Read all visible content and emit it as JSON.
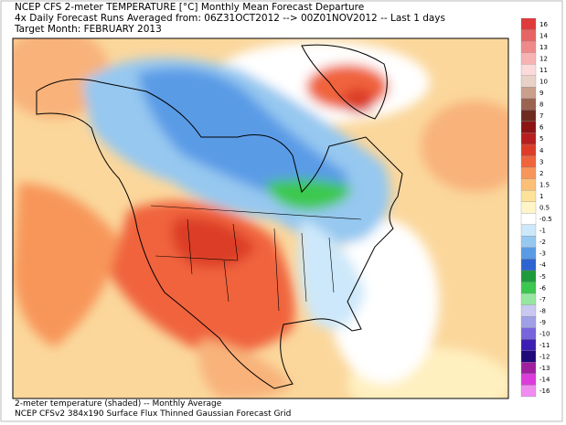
{
  "header": {
    "lines": [
      "NCEP CFS 2-meter TEMPERATURE [°C] Monthly Mean Forecast Departure",
      "4x Daily Forecast Runs Averaged from: 06Z31OCT2012 --> 00Z01NOV2012 -- Last 1 days",
      "Target Month: FEBRUARY 2013"
    ]
  },
  "footer": {
    "lines": [
      "2-meter temperature (shaded) -- Monthly Average",
      "NCEP CFSv2 384x190 Surface Flux Thinned Gaussian Forecast Grid"
    ]
  },
  "colorbar": {
    "levels": [
      16,
      14,
      13,
      12,
      11,
      10,
      9,
      8,
      7,
      6,
      5,
      4,
      3,
      2,
      1.5,
      1,
      0.5,
      -0.5,
      -1,
      -2,
      -3,
      -4,
      -5,
      -6,
      -7,
      -8,
      -9,
      -10,
      -11,
      -12,
      -13,
      -14,
      -16
    ],
    "colors": [
      "#e03b3b",
      "#e86464",
      "#f08a8a",
      "#f7b3b3",
      "#fcdada",
      "#e8d2c8",
      "#c9a08c",
      "#9b6450",
      "#6e2c20",
      "#8c1414",
      "#b81e1e",
      "#dc3c28",
      "#f0643c",
      "#f8965a",
      "#fbbf78",
      "#fde29a",
      "#fff5c8",
      "#ffffff",
      "#cde8fa",
      "#96c8f0",
      "#5a9be6",
      "#2d64d2",
      "#1e9b3c",
      "#3cc850",
      "#96e6a0",
      "#c8c8f0",
      "#a0a0e6",
      "#7864dc",
      "#3c1eb4",
      "#1e0a78",
      "#a01ea0",
      "#dc3cdc",
      "#f08cf0"
    ]
  }
}
